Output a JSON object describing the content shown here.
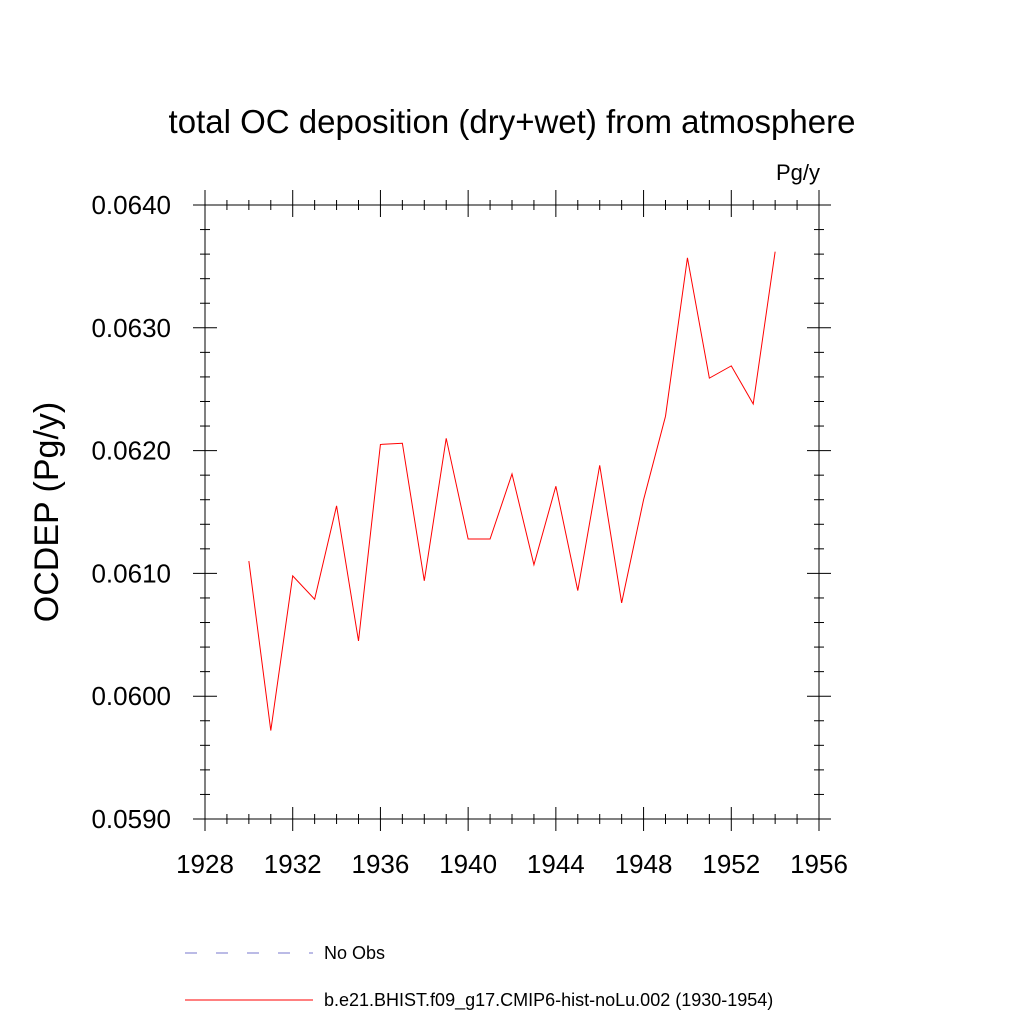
{
  "chart_data": {
    "type": "line",
    "title": "total OC deposition (dry+wet) from atmosphere",
    "units_label": "Pg/y",
    "ylabel": "OCDEP  (Pg/y)",
    "xlabel": "",
    "xlim": [
      1928,
      1956
    ],
    "ylim": [
      0.059,
      0.064
    ],
    "x_ticks": [
      1928,
      1932,
      1936,
      1940,
      1944,
      1948,
      1952,
      1956
    ],
    "x_tick_labels": [
      "1928",
      "1932",
      "1936",
      "1940",
      "1944",
      "1948",
      "1952",
      "1956"
    ],
    "y_ticks": [
      0.059,
      0.06,
      0.061,
      0.062,
      0.063,
      0.064
    ],
    "y_tick_labels": [
      "0.0590",
      "0.0600",
      "0.0610",
      "0.0620",
      "0.0630",
      "0.0640"
    ],
    "grid": false,
    "legend_position": "bottom",
    "series": [
      {
        "name": "b.e21.BHIST.f09_g17.CMIP6-hist-noLu.002 (1930-1954)",
        "color": "#ff0000",
        "x": [
          1930,
          1931,
          1932,
          1933,
          1934,
          1935,
          1936,
          1937,
          1938,
          1939,
          1940,
          1941,
          1942,
          1943,
          1944,
          1945,
          1946,
          1947,
          1948,
          1949,
          1950,
          1951,
          1952,
          1953,
          1954
        ],
        "y": [
          0.0611,
          0.05972,
          0.06098,
          0.06079,
          0.06155,
          0.06045,
          0.06205,
          0.06206,
          0.06094,
          0.0621,
          0.06128,
          0.06128,
          0.06181,
          0.06107,
          0.06171,
          0.06086,
          0.06188,
          0.06076,
          0.0616,
          0.06228,
          0.06357,
          0.06259,
          0.06269,
          0.06238,
          0.06362
        ]
      }
    ],
    "legend": [
      {
        "label": "No Obs",
        "color": "#7777cc",
        "style": "dashed"
      },
      {
        "label": "b.e21.BHIST.f09_g17.CMIP6-hist-noLu.002 (1930-1954)",
        "color": "#ff0000",
        "style": "solid"
      }
    ]
  }
}
